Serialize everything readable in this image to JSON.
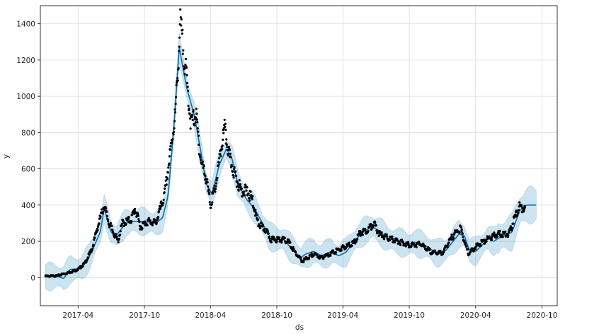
{
  "chart_data": {
    "type": "scatter",
    "title": "",
    "xlabel": "ds",
    "ylabel": "y",
    "xlim": [
      "2016-12-18",
      "2020-11-12"
    ],
    "ylim": [
      -155,
      1500
    ],
    "grid": true,
    "legend": "none",
    "x_ticks": [
      "2017-04",
      "2017-10",
      "2018-04",
      "2018-10",
      "2019-04",
      "2019-10",
      "2020-04",
      "2020-10"
    ],
    "y_ticks": [
      0,
      200,
      400,
      600,
      800,
      1000,
      1200,
      1400
    ],
    "colors": {
      "observed": "#000000",
      "forecast": "#0072B2",
      "interval": "#0072B2"
    },
    "observed": {
      "name": "",
      "x_start": "2017-01-01",
      "x_end": "2020-08-15",
      "knots": [
        [
          "2017-01-01",
          8
        ],
        [
          "2017-02-01",
          10
        ],
        [
          "2017-03-01",
          25
        ],
        [
          "2017-04-01",
          45
        ],
        [
          "2017-04-20",
          80
        ],
        [
          "2017-05-10",
          160
        ],
        [
          "2017-05-25",
          280
        ],
        [
          "2017-06-12",
          400
        ],
        [
          "2017-06-25",
          300
        ],
        [
          "2017-07-10",
          240
        ],
        [
          "2017-07-20",
          200
        ],
        [
          "2017-08-01",
          300
        ],
        [
          "2017-08-25",
          320
        ],
        [
          "2017-09-05",
          380
        ],
        [
          "2017-09-20",
          280
        ],
        [
          "2017-10-10",
          310
        ],
        [
          "2017-11-01",
          300
        ],
        [
          "2017-11-25",
          450
        ],
        [
          "2017-12-12",
          700
        ],
        [
          "2017-12-25",
          900
        ],
        [
          "2018-01-08",
          1400
        ],
        [
          "2018-01-25",
          1100
        ],
        [
          "2018-02-06",
          850
        ],
        [
          "2018-02-20",
          900
        ],
        [
          "2018-03-05",
          650
        ],
        [
          "2018-03-20",
          550
        ],
        [
          "2018-04-01",
          400
        ],
        [
          "2018-04-15",
          500
        ],
        [
          "2018-05-01",
          720
        ],
        [
          "2018-05-10",
          820
        ],
        [
          "2018-05-25",
          650
        ],
        [
          "2018-06-10",
          550
        ],
        [
          "2018-06-25",
          480
        ],
        [
          "2018-07-10",
          480
        ],
        [
          "2018-07-25",
          430
        ],
        [
          "2018-08-10",
          300
        ],
        [
          "2018-09-01",
          260
        ],
        [
          "2018-09-15",
          210
        ],
        [
          "2018-10-15",
          210
        ],
        [
          "2018-11-01",
          200
        ],
        [
          "2018-11-20",
          140
        ],
        [
          "2018-12-10",
          90
        ],
        [
          "2019-01-10",
          130
        ],
        [
          "2019-02-01",
          110
        ],
        [
          "2019-03-01",
          135
        ],
        [
          "2019-04-01",
          165
        ],
        [
          "2019-05-01",
          190
        ],
        [
          "2019-05-20",
          250
        ],
        [
          "2019-06-10",
          265
        ],
        [
          "2019-06-25",
          300
        ],
        [
          "2019-07-10",
          240
        ],
        [
          "2019-08-01",
          220
        ],
        [
          "2019-09-01",
          200
        ],
        [
          "2019-10-01",
          180
        ],
        [
          "2019-11-01",
          185
        ],
        [
          "2019-12-01",
          140
        ],
        [
          "2020-01-01",
          135
        ],
        [
          "2020-02-01",
          240
        ],
        [
          "2020-02-20",
          270
        ],
        [
          "2020-03-12",
          130
        ],
        [
          "2020-04-01",
          170
        ],
        [
          "2020-05-01",
          210
        ],
        [
          "2020-06-01",
          240
        ],
        [
          "2020-07-01",
          240
        ],
        [
          "2020-07-20",
          340
        ],
        [
          "2020-08-01",
          395
        ],
        [
          "2020-08-15",
          380
        ]
      ]
    },
    "forecast": {
      "name": "",
      "x_start": "2017-01-01",
      "x_end": "2020-09-15",
      "knots": [
        [
          "2017-01-01",
          5
        ],
        [
          "2017-02-01",
          8
        ],
        [
          "2017-02-20",
          -5
        ],
        [
          "2017-03-10",
          45
        ],
        [
          "2017-04-10",
          50
        ],
        [
          "2017-05-01",
          110
        ],
        [
          "2017-06-01",
          250
        ],
        [
          "2017-06-12",
          380
        ],
        [
          "2017-07-01",
          250
        ],
        [
          "2017-07-15",
          230
        ],
        [
          "2017-08-10",
          300
        ],
        [
          "2017-09-01",
          310
        ],
        [
          "2017-10-01",
          310
        ],
        [
          "2017-11-01",
          300
        ],
        [
          "2017-11-20",
          330
        ],
        [
          "2017-12-05",
          450
        ],
        [
          "2017-12-20",
          800
        ],
        [
          "2018-01-05",
          1270
        ],
        [
          "2018-01-25",
          1050
        ],
        [
          "2018-02-15",
          900
        ],
        [
          "2018-03-05",
          700
        ],
        [
          "2018-03-20",
          520
        ],
        [
          "2018-04-05",
          460
        ],
        [
          "2018-04-25",
          620
        ],
        [
          "2018-05-15",
          710
        ],
        [
          "2018-05-30",
          660
        ],
        [
          "2018-06-15",
          520
        ],
        [
          "2018-07-10",
          430
        ],
        [
          "2018-08-01",
          380
        ],
        [
          "2018-08-25",
          290
        ],
        [
          "2018-09-10",
          230
        ],
        [
          "2018-10-01",
          210
        ],
        [
          "2018-10-20",
          210
        ],
        [
          "2018-11-15",
          150
        ],
        [
          "2018-12-05",
          110
        ],
        [
          "2018-12-20",
          130
        ],
        [
          "2019-01-10",
          145
        ],
        [
          "2019-02-01",
          120
        ],
        [
          "2019-03-01",
          145
        ],
        [
          "2019-03-20",
          120
        ],
        [
          "2019-04-10",
          140
        ],
        [
          "2019-05-01",
          200
        ],
        [
          "2019-06-01",
          260
        ],
        [
          "2019-06-20",
          280
        ],
        [
          "2019-07-10",
          260
        ],
        [
          "2019-08-01",
          215
        ],
        [
          "2019-09-01",
          200
        ],
        [
          "2019-09-25",
          180
        ],
        [
          "2019-10-15",
          195
        ],
        [
          "2019-11-15",
          175
        ],
        [
          "2019-12-15",
          135
        ],
        [
          "2020-01-10",
          150
        ],
        [
          "2020-02-15",
          240
        ],
        [
          "2020-03-01",
          230
        ],
        [
          "2020-03-15",
          150
        ],
        [
          "2020-04-01",
          145
        ],
        [
          "2020-04-20",
          180
        ],
        [
          "2020-05-05",
          220
        ],
        [
          "2020-05-20",
          200
        ],
        [
          "2020-06-15",
          230
        ],
        [
          "2020-07-10",
          250
        ],
        [
          "2020-08-01",
          370
        ],
        [
          "2020-08-20",
          400
        ],
        [
          "2020-09-15",
          400
        ]
      ]
    },
    "interval_halfwidth": 65
  }
}
